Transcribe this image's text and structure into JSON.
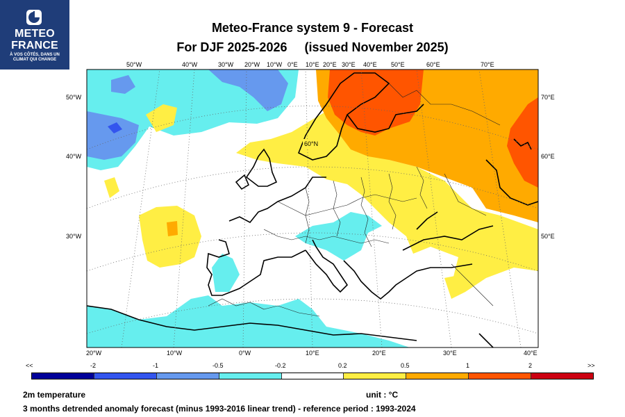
{
  "logo": {
    "line1": "METEO",
    "line2": "FRANCE",
    "tagline": "À VOS CÔTÉS, DANS UN CLIMAT QUI CHANGE"
  },
  "title": {
    "line1": "Meteo-France system 9  -  Forecast",
    "line2a": "For DJF 2025-2026",
    "line2b": "(issued November 2025)"
  },
  "map": {
    "top_lon_labels": [
      "50°W",
      "40°W",
      "30°W",
      "20°W",
      "10°W",
      "0°E",
      "10°E",
      "20°E",
      "30°E",
      "40°E",
      "50°E",
      "60°E",
      "70°E"
    ],
    "bottom_lon_labels": [
      "20°W",
      "10°W",
      "0°W",
      "10°E",
      "20°E",
      "30°E",
      "40°E"
    ],
    "left_lat_labels": [
      "50°W",
      "40°W",
      "30°W"
    ],
    "right_lat_labels": [
      "70°E",
      "60°E",
      "50°E"
    ],
    "grid_label": "60°N"
  },
  "colorbar": {
    "labels": [
      "<<",
      "-2",
      "-1",
      "-0.5",
      "-0.2",
      "0.2",
      "0.5",
      "1",
      "2",
      ">>"
    ],
    "colors": [
      "#000099",
      "#3355ee",
      "#6699ee",
      "#66eeee",
      "#ffffff",
      "#ffee44",
      "#ffaa00",
      "#ff5500",
      "#cc0011"
    ]
  },
  "footer": {
    "variable": "2m temperature",
    "unit": "unit : °C",
    "description": "3 months detrended anomaly forecast (minus 1993-2016 linear trend) - reference period : 1993-2024"
  }
}
